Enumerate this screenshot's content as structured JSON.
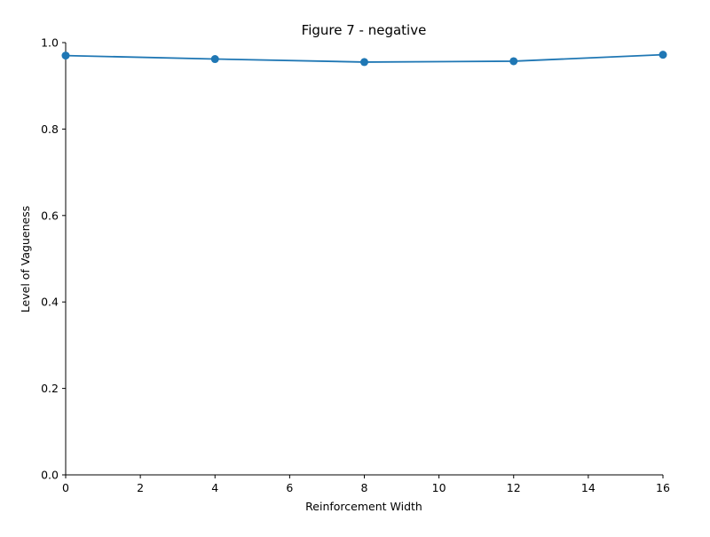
{
  "chart_data": {
    "type": "line",
    "title": "Figure 7 - negative",
    "xlabel": "Reinforcement Width",
    "ylabel": "Level of Vagueness",
    "xlim": [
      0,
      16
    ],
    "ylim": [
      0.0,
      1.0
    ],
    "xticks": [
      "0",
      "2",
      "4",
      "6",
      "8",
      "10",
      "12",
      "14",
      "16"
    ],
    "yticks": [
      "0.0",
      "0.2",
      "0.4",
      "0.6",
      "0.8",
      "1.0"
    ],
    "grid": false,
    "x": [
      0,
      4,
      8,
      12,
      16
    ],
    "series": [
      {
        "values": [
          0.97,
          0.962,
          0.955,
          0.957,
          0.972
        ]
      }
    ],
    "colors": {
      "series": "#1f77b4",
      "axes": "#000000"
    }
  }
}
